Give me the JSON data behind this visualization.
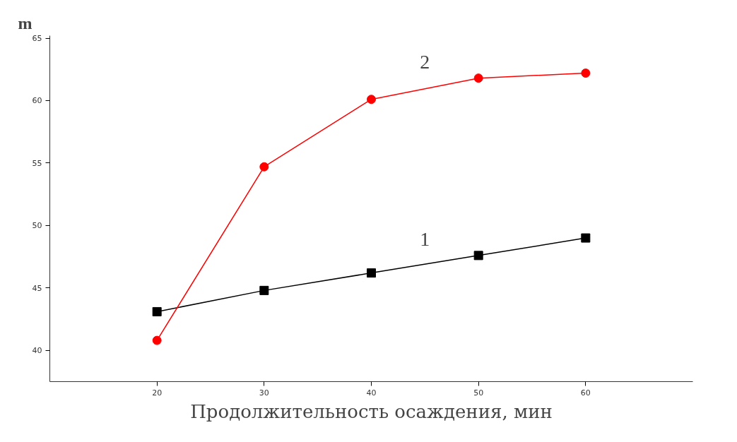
{
  "chart_data": {
    "type": "line",
    "xlabel": "Продолжительность осаждения, мин",
    "ylabel": "m",
    "x": [
      20,
      30,
      40,
      50,
      60
    ],
    "series": [
      {
        "name": "1",
        "color": "#000000",
        "marker": "square",
        "values": [
          43.1,
          44.8,
          46.2,
          47.6,
          49.0
        ]
      },
      {
        "name": "2",
        "color": "#ff0000",
        "marker": "circle",
        "values": [
          40.8,
          54.7,
          60.1,
          61.8,
          62.2
        ]
      }
    ],
    "xlim": [
      10,
      70
    ],
    "ylim": [
      37.5,
      65.2
    ],
    "xticks": [
      20,
      30,
      40,
      50,
      60
    ],
    "yticks": [
      40,
      45,
      50,
      55,
      60,
      65
    ],
    "grid": false,
    "legend": false
  }
}
